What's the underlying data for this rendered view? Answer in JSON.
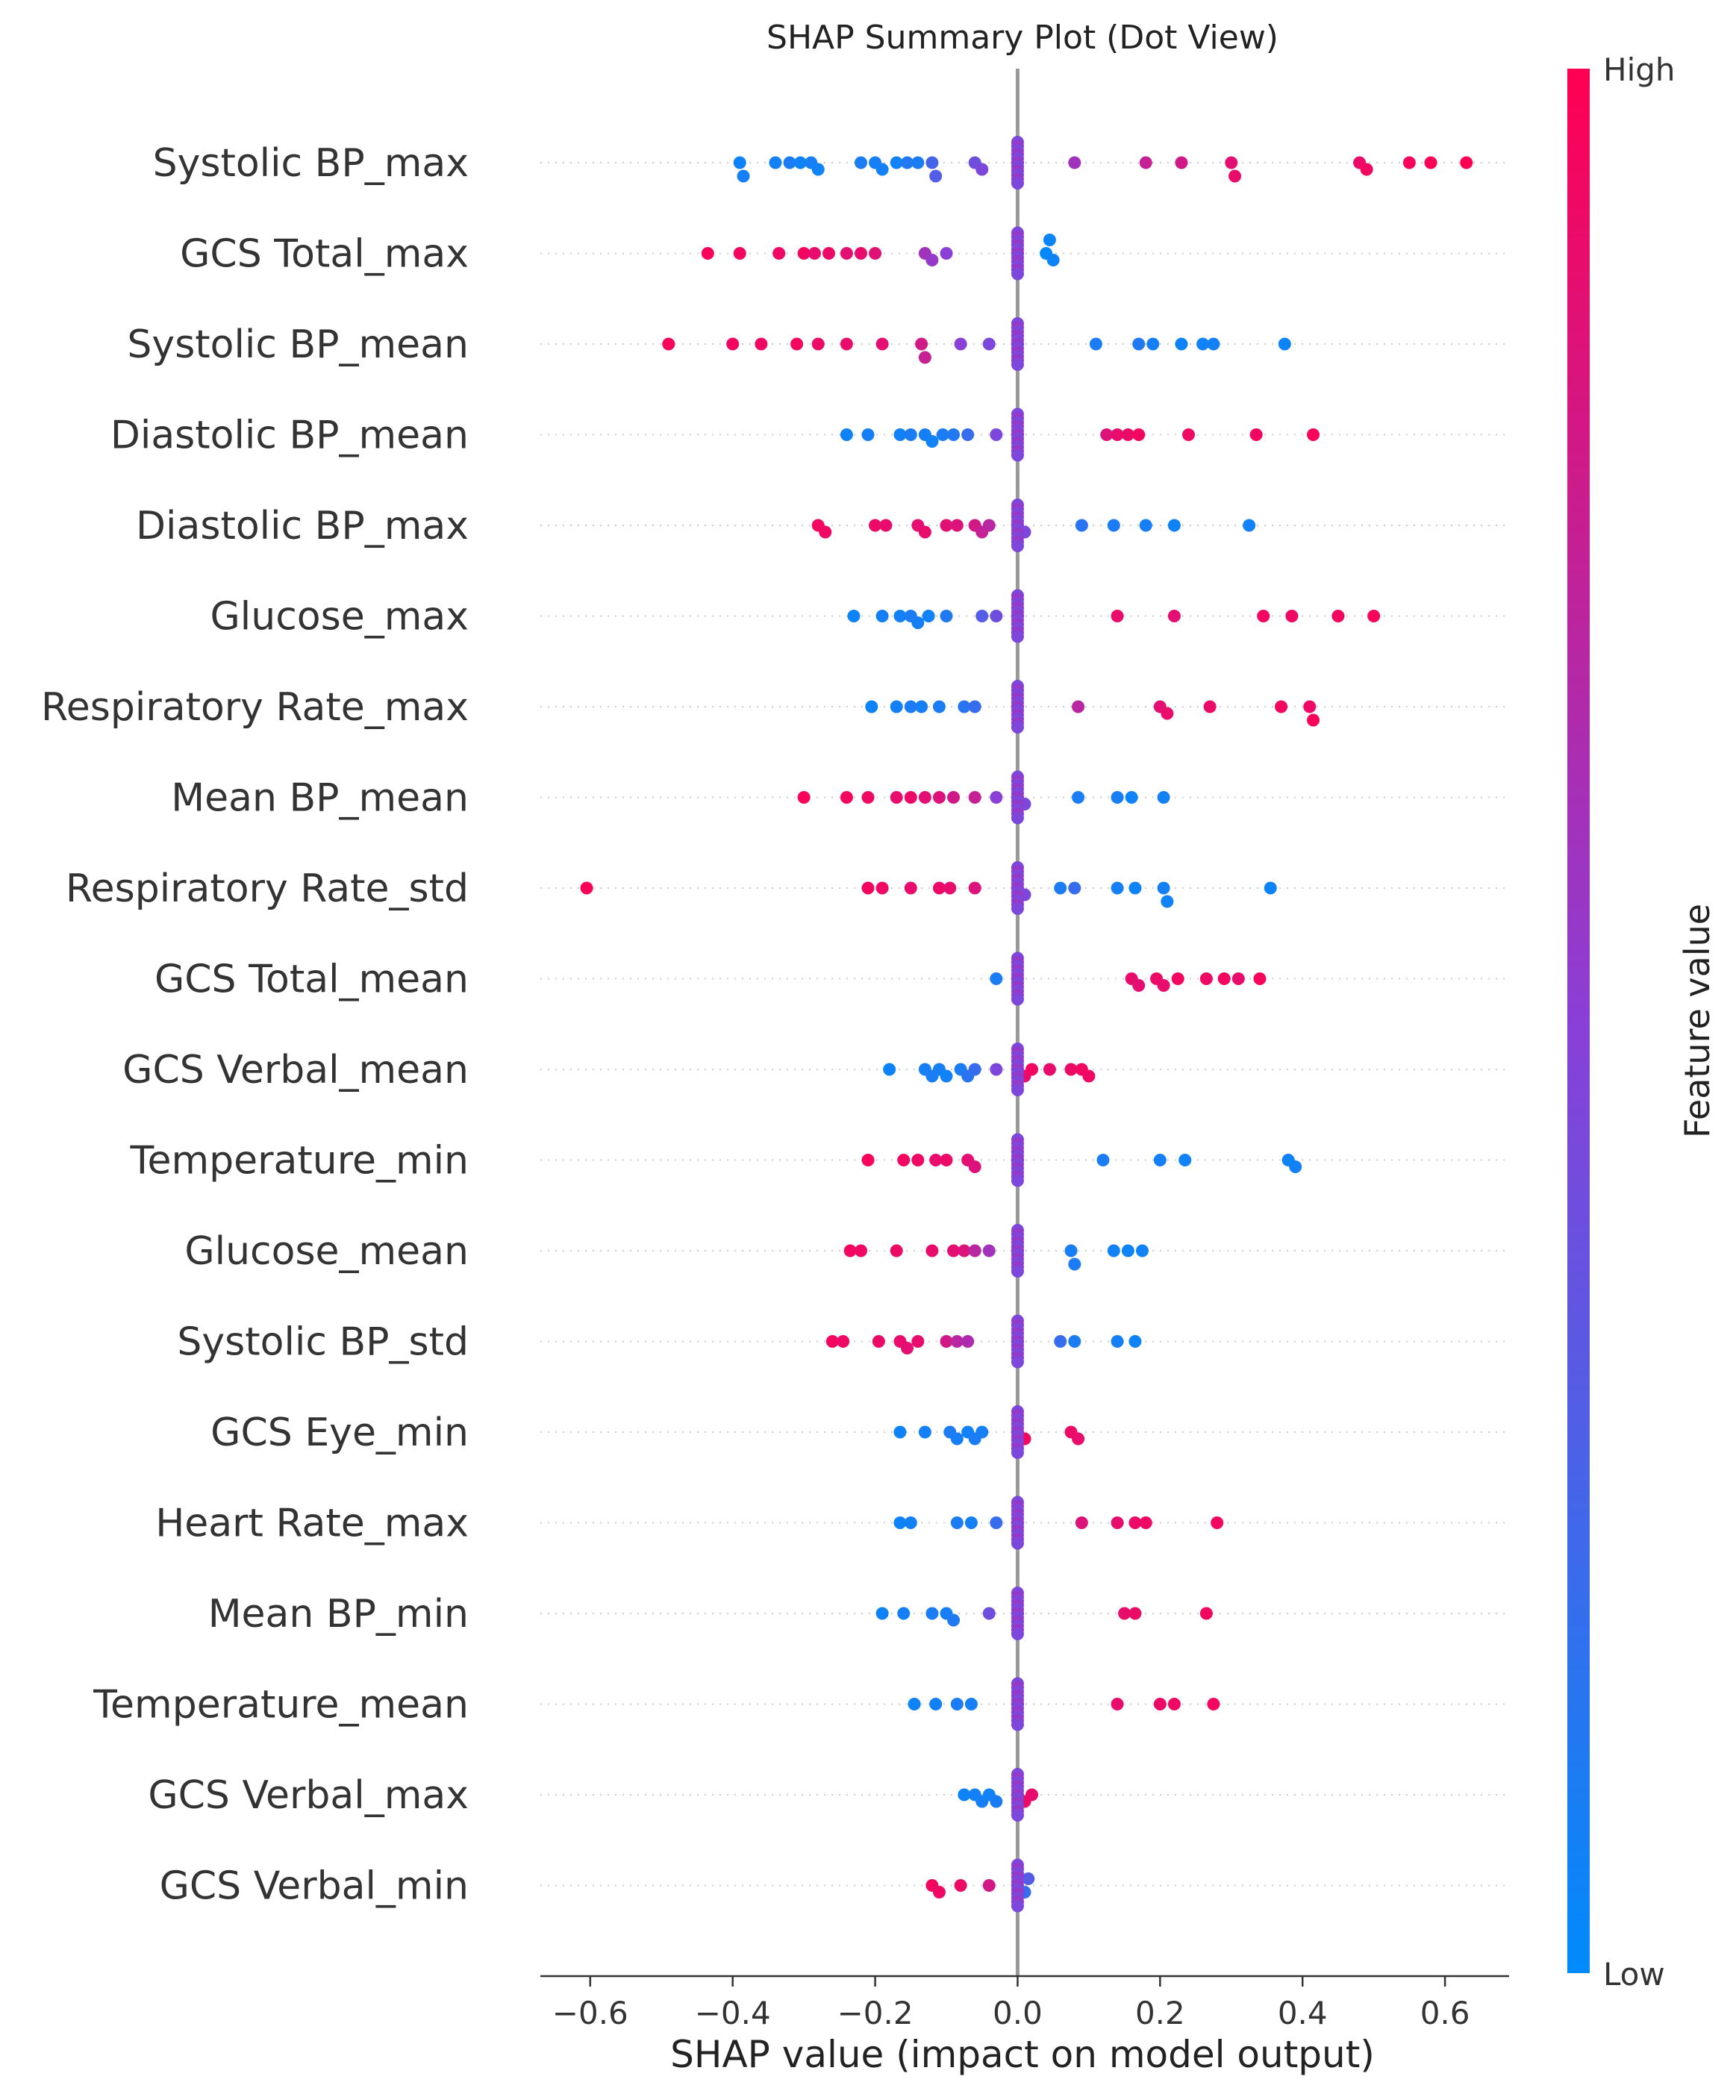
{
  "chart_data": {
    "type": "scatter",
    "subtype": "shap-summary-dot",
    "title": "SHAP Summary Plot (Dot View)",
    "xlabel": "SHAP value (impact on model output)",
    "xlim": [
      -0.67,
      0.69
    ],
    "xticks": [
      -0.6,
      -0.4,
      -0.2,
      0.0,
      0.2,
      0.4,
      0.6
    ],
    "xtick_labels": [
      "−0.6",
      "−0.4",
      "−0.2",
      "0.0",
      "0.2",
      "0.4",
      "0.6"
    ],
    "colorbar": {
      "title": "Feature value",
      "high_label": "High",
      "low_label": "Low",
      "low_color": "#008bfb",
      "high_color": "#ff0052",
      "mid_color": "#8a3fd6"
    },
    "features": [
      {
        "name": "Systolic BP_max",
        "points": [
          [
            -0.39,
            0.05
          ],
          [
            -0.385,
            0.08
          ],
          [
            -0.34,
            0.07
          ],
          [
            -0.32,
            0.1
          ],
          [
            -0.305,
            0.05
          ],
          [
            -0.29,
            0.08
          ],
          [
            -0.28,
            0.06
          ],
          [
            -0.22,
            0.1
          ],
          [
            -0.2,
            0.08
          ],
          [
            -0.19,
            0.07
          ],
          [
            -0.17,
            0.06
          ],
          [
            -0.155,
            0.12
          ],
          [
            -0.14,
            0.1
          ],
          [
            -0.12,
            0.25
          ],
          [
            -0.115,
            0.3
          ],
          [
            -0.06,
            0.4
          ],
          [
            -0.05,
            0.45
          ],
          [
            0.0,
            0.5
          ],
          [
            0.08,
            0.6
          ],
          [
            0.18,
            0.75
          ],
          [
            0.23,
            0.8
          ],
          [
            0.3,
            0.88
          ],
          [
            0.305,
            0.9
          ],
          [
            0.48,
            0.92
          ],
          [
            0.49,
            0.95
          ],
          [
            0.55,
            0.97
          ],
          [
            0.58,
            0.98
          ],
          [
            0.63,
            1.0
          ]
        ]
      },
      {
        "name": "GCS Total_max",
        "points": [
          [
            -0.435,
            0.97
          ],
          [
            -0.39,
            0.95
          ],
          [
            -0.335,
            0.93
          ],
          [
            -0.3,
            0.95
          ],
          [
            -0.285,
            0.9
          ],
          [
            -0.265,
            0.92
          ],
          [
            -0.24,
            0.88
          ],
          [
            -0.22,
            0.9
          ],
          [
            -0.2,
            0.87
          ],
          [
            -0.13,
            0.6
          ],
          [
            -0.12,
            0.55
          ],
          [
            -0.1,
            0.5
          ],
          [
            0.0,
            0.05
          ],
          [
            0.04,
            0.02
          ],
          [
            0.05,
            0.05
          ],
          [
            0.045,
            0.03
          ]
        ]
      },
      {
        "name": "Systolic BP_mean",
        "points": [
          [
            -0.49,
            0.97
          ],
          [
            -0.4,
            0.95
          ],
          [
            -0.36,
            0.93
          ],
          [
            -0.31,
            0.95
          ],
          [
            -0.28,
            0.92
          ],
          [
            -0.24,
            0.9
          ],
          [
            -0.19,
            0.88
          ],
          [
            -0.135,
            0.8
          ],
          [
            -0.13,
            0.75
          ],
          [
            -0.08,
            0.5
          ],
          [
            -0.04,
            0.45
          ],
          [
            0.0,
            0.5
          ],
          [
            0.11,
            0.1
          ],
          [
            0.17,
            0.12
          ],
          [
            0.19,
            0.08
          ],
          [
            0.23,
            0.05
          ],
          [
            0.26,
            0.06
          ],
          [
            0.275,
            0.07
          ],
          [
            0.375,
            0.05
          ]
        ]
      },
      {
        "name": "Diastolic BP_mean",
        "points": [
          [
            -0.24,
            0.05
          ],
          [
            -0.21,
            0.08
          ],
          [
            -0.165,
            0.07
          ],
          [
            -0.15,
            0.1
          ],
          [
            -0.13,
            0.08
          ],
          [
            -0.12,
            0.06
          ],
          [
            -0.105,
            0.1
          ],
          [
            -0.09,
            0.12
          ],
          [
            -0.07,
            0.2
          ],
          [
            -0.03,
            0.45
          ],
          [
            0.0,
            0.5
          ],
          [
            0.125,
            0.85
          ],
          [
            0.14,
            0.9
          ],
          [
            0.155,
            0.92
          ],
          [
            0.17,
            0.95
          ],
          [
            0.24,
            0.93
          ],
          [
            0.335,
            0.95
          ],
          [
            0.415,
            0.97
          ]
        ]
      },
      {
        "name": "Diastolic BP_max",
        "points": [
          [
            -0.28,
            0.95
          ],
          [
            -0.27,
            0.93
          ],
          [
            -0.2,
            0.92
          ],
          [
            -0.185,
            0.9
          ],
          [
            -0.14,
            0.88
          ],
          [
            -0.13,
            0.9
          ],
          [
            -0.1,
            0.87
          ],
          [
            -0.085,
            0.85
          ],
          [
            -0.06,
            0.8
          ],
          [
            -0.05,
            0.75
          ],
          [
            -0.04,
            0.7
          ],
          [
            0.0,
            0.5
          ],
          [
            0.01,
            0.45
          ],
          [
            0.09,
            0.15
          ],
          [
            0.135,
            0.1
          ],
          [
            0.18,
            0.08
          ],
          [
            0.22,
            0.05
          ],
          [
            0.325,
            0.06
          ]
        ]
      },
      {
        "name": "Glucose_max",
        "points": [
          [
            -0.23,
            0.05
          ],
          [
            -0.19,
            0.08
          ],
          [
            -0.165,
            0.07
          ],
          [
            -0.15,
            0.1
          ],
          [
            -0.14,
            0.08
          ],
          [
            -0.125,
            0.06
          ],
          [
            -0.1,
            0.12
          ],
          [
            -0.05,
            0.3
          ],
          [
            -0.03,
            0.4
          ],
          [
            0.0,
            0.5
          ],
          [
            0.14,
            0.9
          ],
          [
            0.22,
            0.88
          ],
          [
            0.345,
            0.95
          ],
          [
            0.385,
            0.93
          ],
          [
            0.45,
            0.95
          ],
          [
            0.5,
            0.97
          ]
        ]
      },
      {
        "name": "Respiratory Rate_max",
        "points": [
          [
            -0.205,
            0.05
          ],
          [
            -0.17,
            0.07
          ],
          [
            -0.15,
            0.1
          ],
          [
            -0.135,
            0.08
          ],
          [
            -0.11,
            0.1
          ],
          [
            -0.075,
            0.15
          ],
          [
            -0.06,
            0.2
          ],
          [
            0.0,
            0.5
          ],
          [
            0.085,
            0.7
          ],
          [
            0.2,
            0.88
          ],
          [
            0.21,
            0.9
          ],
          [
            0.27,
            0.92
          ],
          [
            0.37,
            0.95
          ],
          [
            0.41,
            0.93
          ],
          [
            0.415,
            0.97
          ]
        ]
      },
      {
        "name": "Mean BP_mean",
        "points": [
          [
            -0.3,
            0.97
          ],
          [
            -0.24,
            0.95
          ],
          [
            -0.21,
            0.93
          ],
          [
            -0.17,
            0.9
          ],
          [
            -0.15,
            0.92
          ],
          [
            -0.13,
            0.88
          ],
          [
            -0.11,
            0.85
          ],
          [
            -0.09,
            0.8
          ],
          [
            -0.06,
            0.75
          ],
          [
            -0.03,
            0.5
          ],
          [
            0.0,
            0.5
          ],
          [
            0.01,
            0.45
          ],
          [
            0.085,
            0.1
          ],
          [
            0.14,
            0.08
          ],
          [
            0.16,
            0.05
          ],
          [
            0.205,
            0.07
          ]
        ]
      },
      {
        "name": "Respiratory Rate_std",
        "points": [
          [
            -0.605,
            0.98
          ],
          [
            -0.21,
            0.95
          ],
          [
            -0.19,
            0.93
          ],
          [
            -0.15,
            0.9
          ],
          [
            -0.11,
            0.92
          ],
          [
            -0.095,
            0.9
          ],
          [
            -0.06,
            0.85
          ],
          [
            0.0,
            0.5
          ],
          [
            0.01,
            0.45
          ],
          [
            0.06,
            0.1
          ],
          [
            0.08,
            0.2
          ],
          [
            0.14,
            0.08
          ],
          [
            0.165,
            0.05
          ],
          [
            0.205,
            0.07
          ],
          [
            0.21,
            0.06
          ],
          [
            0.355,
            0.05
          ]
        ]
      },
      {
        "name": "GCS Total_mean",
        "points": [
          [
            -0.03,
            0.1
          ],
          [
            0.0,
            0.05
          ],
          [
            0.16,
            0.9
          ],
          [
            0.17,
            0.88
          ],
          [
            0.195,
            0.92
          ],
          [
            0.205,
            0.9
          ],
          [
            0.225,
            0.95
          ],
          [
            0.265,
            0.93
          ],
          [
            0.29,
            0.95
          ],
          [
            0.31,
            0.9
          ],
          [
            0.34,
            0.97
          ]
        ]
      },
      {
        "name": "GCS Verbal_mean",
        "points": [
          [
            -0.18,
            0.05
          ],
          [
            -0.13,
            0.07
          ],
          [
            -0.12,
            0.1
          ],
          [
            -0.11,
            0.08
          ],
          [
            -0.1,
            0.06
          ],
          [
            -0.08,
            0.1
          ],
          [
            -0.07,
            0.15
          ],
          [
            -0.06,
            0.2
          ],
          [
            -0.03,
            0.45
          ],
          [
            0.0,
            0.5
          ],
          [
            0.01,
            0.9
          ],
          [
            0.02,
            0.95
          ],
          [
            0.045,
            0.9
          ],
          [
            0.075,
            0.92
          ],
          [
            0.09,
            0.95
          ],
          [
            0.1,
            0.93
          ]
        ]
      },
      {
        "name": "Temperature_min",
        "points": [
          [
            -0.21,
            0.97
          ],
          [
            -0.16,
            0.95
          ],
          [
            -0.14,
            0.93
          ],
          [
            -0.115,
            0.9
          ],
          [
            -0.1,
            0.92
          ],
          [
            -0.07,
            0.88
          ],
          [
            -0.06,
            0.85
          ],
          [
            0.0,
            0.5
          ],
          [
            0.12,
            0.1
          ],
          [
            0.2,
            0.08
          ],
          [
            0.235,
            0.06
          ],
          [
            0.38,
            0.05
          ],
          [
            0.39,
            0.07
          ]
        ]
      },
      {
        "name": "Glucose_mean",
        "points": [
          [
            -0.235,
            0.95
          ],
          [
            -0.22,
            0.93
          ],
          [
            -0.17,
            0.92
          ],
          [
            -0.12,
            0.9
          ],
          [
            -0.09,
            0.88
          ],
          [
            -0.075,
            0.85
          ],
          [
            -0.06,
            0.7
          ],
          [
            -0.04,
            0.6
          ],
          [
            0.0,
            0.5
          ],
          [
            0.075,
            0.08
          ],
          [
            0.08,
            0.1
          ],
          [
            0.135,
            0.07
          ],
          [
            0.155,
            0.05
          ],
          [
            0.175,
            0.06
          ]
        ]
      },
      {
        "name": "Systolic BP_std",
        "points": [
          [
            -0.26,
            0.95
          ],
          [
            -0.245,
            0.93
          ],
          [
            -0.195,
            0.92
          ],
          [
            -0.165,
            0.9
          ],
          [
            -0.155,
            0.88
          ],
          [
            -0.14,
            0.9
          ],
          [
            -0.1,
            0.8
          ],
          [
            -0.085,
            0.7
          ],
          [
            -0.07,
            0.65
          ],
          [
            0.0,
            0.5
          ],
          [
            0.06,
            0.2
          ],
          [
            0.08,
            0.1
          ],
          [
            0.14,
            0.08
          ],
          [
            0.165,
            0.05
          ]
        ]
      },
      {
        "name": "GCS Eye_min",
        "points": [
          [
            -0.165,
            0.05
          ],
          [
            -0.13,
            0.07
          ],
          [
            -0.095,
            0.1
          ],
          [
            -0.085,
            0.08
          ],
          [
            -0.07,
            0.06
          ],
          [
            -0.06,
            0.1
          ],
          [
            -0.05,
            0.08
          ],
          [
            0.0,
            0.9
          ],
          [
            0.01,
            0.95
          ],
          [
            0.075,
            0.92
          ],
          [
            0.085,
            0.9
          ]
        ]
      },
      {
        "name": "Heart Rate_max",
        "points": [
          [
            -0.165,
            0.05
          ],
          [
            -0.15,
            0.07
          ],
          [
            -0.085,
            0.1
          ],
          [
            -0.065,
            0.08
          ],
          [
            -0.03,
            0.2
          ],
          [
            0.0,
            0.5
          ],
          [
            0.09,
            0.85
          ],
          [
            0.14,
            0.9
          ],
          [
            0.165,
            0.92
          ],
          [
            0.18,
            0.93
          ],
          [
            0.28,
            0.95
          ]
        ]
      },
      {
        "name": "Mean BP_min",
        "points": [
          [
            -0.19,
            0.05
          ],
          [
            -0.16,
            0.07
          ],
          [
            -0.12,
            0.1
          ],
          [
            -0.1,
            0.08
          ],
          [
            -0.09,
            0.12
          ],
          [
            -0.04,
            0.4
          ],
          [
            0.0,
            0.5
          ],
          [
            0.15,
            0.9
          ],
          [
            0.165,
            0.92
          ],
          [
            0.265,
            0.95
          ]
        ]
      },
      {
        "name": "Temperature_mean",
        "points": [
          [
            -0.145,
            0.05
          ],
          [
            -0.115,
            0.07
          ],
          [
            -0.085,
            0.1
          ],
          [
            -0.065,
            0.08
          ],
          [
            0.0,
            0.3
          ],
          [
            0.14,
            0.9
          ],
          [
            0.2,
            0.92
          ],
          [
            0.22,
            0.93
          ],
          [
            0.275,
            0.95
          ]
        ]
      },
      {
        "name": "GCS Verbal_max",
        "points": [
          [
            -0.075,
            0.05
          ],
          [
            -0.06,
            0.07
          ],
          [
            -0.05,
            0.08
          ],
          [
            -0.04,
            0.06
          ],
          [
            -0.03,
            0.1
          ],
          [
            0.0,
            0.95
          ],
          [
            0.01,
            0.92
          ],
          [
            0.02,
            0.9
          ]
        ]
      },
      {
        "name": "GCS Verbal_min",
        "points": [
          [
            -0.12,
            0.95
          ],
          [
            -0.11,
            0.93
          ],
          [
            -0.08,
            0.92
          ],
          [
            -0.04,
            0.8
          ],
          [
            0.0,
            0.1
          ],
          [
            0.01,
            0.2
          ],
          [
            0.015,
            0.3
          ]
        ]
      }
    ]
  }
}
